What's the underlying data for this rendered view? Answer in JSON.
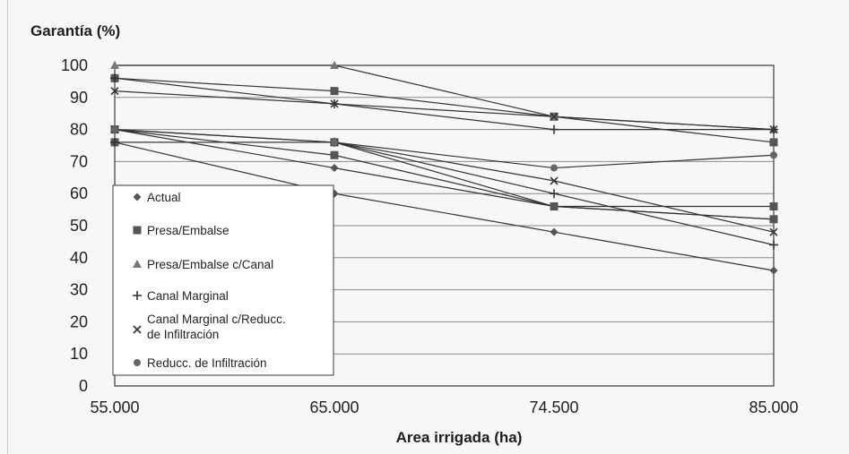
{
  "chart_data": {
    "type": "line",
    "title": "Garantía (%)",
    "xlabel": "Area irrigada (ha)",
    "ylabel": "",
    "categories": [
      "55.000",
      "65.000",
      "74.500",
      "85.000"
    ],
    "ylim": [
      0,
      100
    ],
    "yticks": [
      "0",
      "10",
      "20",
      "30",
      "40",
      "50",
      "60",
      "70",
      "80",
      "90",
      "100"
    ],
    "grid": true,
    "legend_position": "bottom-left",
    "series": [
      {
        "name": "Actual",
        "marker": "diamond",
        "groups": [
          [
            80,
            68,
            56,
            52
          ],
          [
            76,
            60,
            48,
            36
          ]
        ]
      },
      {
        "name": "Presa/Embalse",
        "marker": "square",
        "groups": [
          [
            96,
            92,
            84,
            76
          ],
          [
            80,
            72,
            56,
            56
          ],
          [
            76,
            76,
            56,
            52
          ]
        ]
      },
      {
        "name": "Presa/Embalse c/Canal",
        "marker": "triangle",
        "groups": [
          [
            100,
            100,
            84,
            80
          ]
        ]
      },
      {
        "name": "Canal Marginal",
        "marker": "plus",
        "groups": [
          [
            96,
            88,
            80,
            80
          ],
          [
            76,
            76,
            60,
            44
          ]
        ]
      },
      {
        "name": "Canal Marginal c/Reducc. de Infiltración",
        "marker": "x",
        "groups": [
          [
            92,
            88,
            84,
            80
          ],
          [
            80,
            76,
            64,
            48
          ]
        ]
      },
      {
        "name": "Reducc. de Infiltración",
        "marker": "circle",
        "groups": [
          [
            80,
            76,
            68,
            72
          ]
        ]
      }
    ],
    "line_color": "#333333",
    "marker_color": "#555555"
  }
}
